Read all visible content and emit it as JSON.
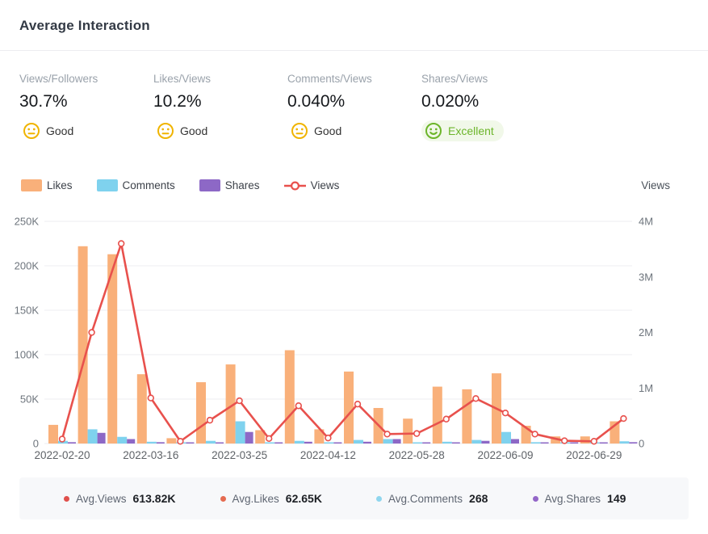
{
  "header": {
    "title": "Average Interaction"
  },
  "metrics": [
    {
      "label": "Views/Followers",
      "value": "30.7%",
      "rating": "Good",
      "rating_level": "good"
    },
    {
      "label": "Likes/Views",
      "value": "10.2%",
      "rating": "Good",
      "rating_level": "good"
    },
    {
      "label": "Comments/Views",
      "value": "0.040%",
      "rating": "Good",
      "rating_level": "good"
    },
    {
      "label": "Shares/Views",
      "value": "0.020%",
      "rating": "Excellent",
      "rating_level": "excellent"
    }
  ],
  "colors": {
    "likes": "#F9B07A",
    "comments": "#7FD2EE",
    "shares": "#8D68C6",
    "views": "#E8514D",
    "good": "#F0B400",
    "excellent": "#6CB52A",
    "excellent_bg": "#F1F8E9",
    "grid": "#ECEDF0",
    "axis_text": "#6E757D"
  },
  "chart_data": {
    "type": "bar",
    "note": "grouped bars (Likes/Comments/Shares, left axis K) + line (Views, right axis M)",
    "categories": [
      "2022-02-20",
      "",
      "",
      "2022-03-16",
      "",
      "",
      "2022-03-25",
      "",
      "",
      "2022-04-12",
      "",
      "",
      "2022-05-28",
      "",
      "",
      "2022-06-09",
      "",
      "",
      "2022-06-29",
      ""
    ],
    "visible_x_labels": [
      "2022-02-20",
      "2022-03-16",
      "2022-03-25",
      "2022-04-12",
      "2022-05-28",
      "2022-06-09",
      "2022-06-29"
    ],
    "series": [
      {
        "name": "Likes",
        "type": "bar",
        "axis": "left",
        "unit": "K",
        "color": "#F9B07A",
        "values": [
          21,
          222,
          213,
          78,
          6,
          69,
          89,
          15,
          105,
          16,
          81,
          40,
          28,
          64,
          61,
          79,
          20,
          8,
          8,
          25
        ]
      },
      {
        "name": "Comments",
        "type": "bar",
        "axis": "left",
        "unit": "K",
        "color": "#7FD2EE",
        "values": [
          3,
          16,
          7.5,
          2,
          0.5,
          3,
          25,
          1,
          3,
          1,
          4,
          5,
          1,
          2,
          4,
          13,
          1.5,
          0.5,
          0.5,
          2.5
        ]
      },
      {
        "name": "Shares",
        "type": "bar",
        "axis": "left",
        "unit": "K",
        "color": "#8D68C6",
        "values": [
          1.5,
          12,
          5,
          1.5,
          0.3,
          1,
          13,
          0.5,
          2,
          0.5,
          2,
          5,
          0.5,
          1,
          3,
          5,
          0.8,
          0.3,
          0.3,
          1.5
        ]
      },
      {
        "name": "Views",
        "type": "line",
        "axis": "right",
        "unit": "M",
        "color": "#E8514D",
        "values": [
          0.08,
          2.0,
          3.6,
          0.82,
          0.04,
          0.42,
          0.77,
          0.09,
          0.68,
          0.1,
          0.71,
          0.17,
          0.18,
          0.44,
          0.81,
          0.55,
          0.17,
          0.05,
          0.04,
          0.45
        ]
      }
    ],
    "left_axis": {
      "ticks": [
        "0",
        "50K",
        "100K",
        "150K",
        "200K",
        "250K"
      ],
      "max": 250,
      "unit": "K"
    },
    "right_axis": {
      "name": "Views",
      "ticks": [
        "0",
        "1M",
        "2M",
        "3M",
        "4M"
      ],
      "max": 4,
      "unit": "M"
    },
    "legend": [
      "Likes",
      "Comments",
      "Shares",
      "Views"
    ],
    "grid": true,
    "legend_position": "top-left"
  },
  "footer_stats": [
    {
      "label": "Avg.Views",
      "value": "613.82K",
      "dot_color": "#E0504C"
    },
    {
      "label": "Avg.Likes",
      "value": "62.65K",
      "dot_color": "#E56B50"
    },
    {
      "label": "Avg.Comments",
      "value": "268",
      "dot_color": "#8FD6EE"
    },
    {
      "label": "Avg.Shares",
      "value": "149",
      "dot_color": "#9366C8"
    }
  ]
}
